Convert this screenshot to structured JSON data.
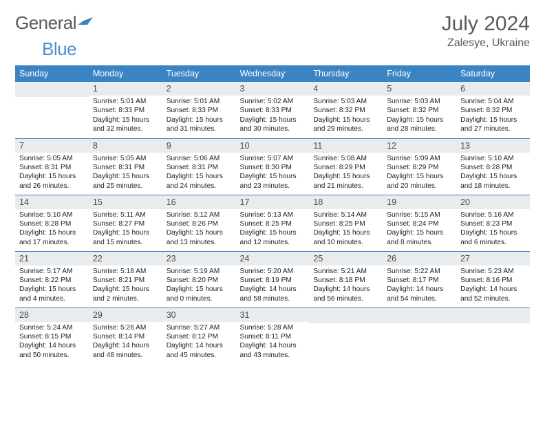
{
  "brand": {
    "part1": "General",
    "part2": "Blue"
  },
  "title": {
    "month": "July 2024",
    "location": "Zalesye, Ukraine"
  },
  "colors": {
    "header_bg": "#3b84c4",
    "header_fg": "#ffffff",
    "daynum_bg": "#e9ecef",
    "rule": "#3b84c4"
  },
  "weekdays": [
    "Sunday",
    "Monday",
    "Tuesday",
    "Wednesday",
    "Thursday",
    "Friday",
    "Saturday"
  ],
  "weeks": [
    [
      {
        "empty": true
      },
      {
        "n": "1",
        "sr": "5:01 AM",
        "ss": "8:33 PM",
        "dl": "15 hours and 32 minutes."
      },
      {
        "n": "2",
        "sr": "5:01 AM",
        "ss": "8:33 PM",
        "dl": "15 hours and 31 minutes."
      },
      {
        "n": "3",
        "sr": "5:02 AM",
        "ss": "8:33 PM",
        "dl": "15 hours and 30 minutes."
      },
      {
        "n": "4",
        "sr": "5:03 AM",
        "ss": "8:32 PM",
        "dl": "15 hours and 29 minutes."
      },
      {
        "n": "5",
        "sr": "5:03 AM",
        "ss": "8:32 PM",
        "dl": "15 hours and 28 minutes."
      },
      {
        "n": "6",
        "sr": "5:04 AM",
        "ss": "8:32 PM",
        "dl": "15 hours and 27 minutes."
      }
    ],
    [
      {
        "n": "7",
        "sr": "5:05 AM",
        "ss": "8:31 PM",
        "dl": "15 hours and 26 minutes."
      },
      {
        "n": "8",
        "sr": "5:05 AM",
        "ss": "8:31 PM",
        "dl": "15 hours and 25 minutes."
      },
      {
        "n": "9",
        "sr": "5:06 AM",
        "ss": "8:31 PM",
        "dl": "15 hours and 24 minutes."
      },
      {
        "n": "10",
        "sr": "5:07 AM",
        "ss": "8:30 PM",
        "dl": "15 hours and 23 minutes."
      },
      {
        "n": "11",
        "sr": "5:08 AM",
        "ss": "8:29 PM",
        "dl": "15 hours and 21 minutes."
      },
      {
        "n": "12",
        "sr": "5:09 AM",
        "ss": "8:29 PM",
        "dl": "15 hours and 20 minutes."
      },
      {
        "n": "13",
        "sr": "5:10 AM",
        "ss": "8:28 PM",
        "dl": "15 hours and 18 minutes."
      }
    ],
    [
      {
        "n": "14",
        "sr": "5:10 AM",
        "ss": "8:28 PM",
        "dl": "15 hours and 17 minutes."
      },
      {
        "n": "15",
        "sr": "5:11 AM",
        "ss": "8:27 PM",
        "dl": "15 hours and 15 minutes."
      },
      {
        "n": "16",
        "sr": "5:12 AM",
        "ss": "8:26 PM",
        "dl": "15 hours and 13 minutes."
      },
      {
        "n": "17",
        "sr": "5:13 AM",
        "ss": "8:25 PM",
        "dl": "15 hours and 12 minutes."
      },
      {
        "n": "18",
        "sr": "5:14 AM",
        "ss": "8:25 PM",
        "dl": "15 hours and 10 minutes."
      },
      {
        "n": "19",
        "sr": "5:15 AM",
        "ss": "8:24 PM",
        "dl": "15 hours and 8 minutes."
      },
      {
        "n": "20",
        "sr": "5:16 AM",
        "ss": "8:23 PM",
        "dl": "15 hours and 6 minutes."
      }
    ],
    [
      {
        "n": "21",
        "sr": "5:17 AM",
        "ss": "8:22 PM",
        "dl": "15 hours and 4 minutes."
      },
      {
        "n": "22",
        "sr": "5:18 AM",
        "ss": "8:21 PM",
        "dl": "15 hours and 2 minutes."
      },
      {
        "n": "23",
        "sr": "5:19 AM",
        "ss": "8:20 PM",
        "dl": "15 hours and 0 minutes."
      },
      {
        "n": "24",
        "sr": "5:20 AM",
        "ss": "8:19 PM",
        "dl": "14 hours and 58 minutes."
      },
      {
        "n": "25",
        "sr": "5:21 AM",
        "ss": "8:18 PM",
        "dl": "14 hours and 56 minutes."
      },
      {
        "n": "26",
        "sr": "5:22 AM",
        "ss": "8:17 PM",
        "dl": "14 hours and 54 minutes."
      },
      {
        "n": "27",
        "sr": "5:23 AM",
        "ss": "8:16 PM",
        "dl": "14 hours and 52 minutes."
      }
    ],
    [
      {
        "n": "28",
        "sr": "5:24 AM",
        "ss": "8:15 PM",
        "dl": "14 hours and 50 minutes."
      },
      {
        "n": "29",
        "sr": "5:26 AM",
        "ss": "8:14 PM",
        "dl": "14 hours and 48 minutes."
      },
      {
        "n": "30",
        "sr": "5:27 AM",
        "ss": "8:12 PM",
        "dl": "14 hours and 45 minutes."
      },
      {
        "n": "31",
        "sr": "5:28 AM",
        "ss": "8:11 PM",
        "dl": "14 hours and 43 minutes."
      },
      {
        "empty": true
      },
      {
        "empty": true
      },
      {
        "empty": true
      }
    ]
  ],
  "labels": {
    "sunrise": "Sunrise:",
    "sunset": "Sunset:",
    "daylight": "Daylight:"
  }
}
